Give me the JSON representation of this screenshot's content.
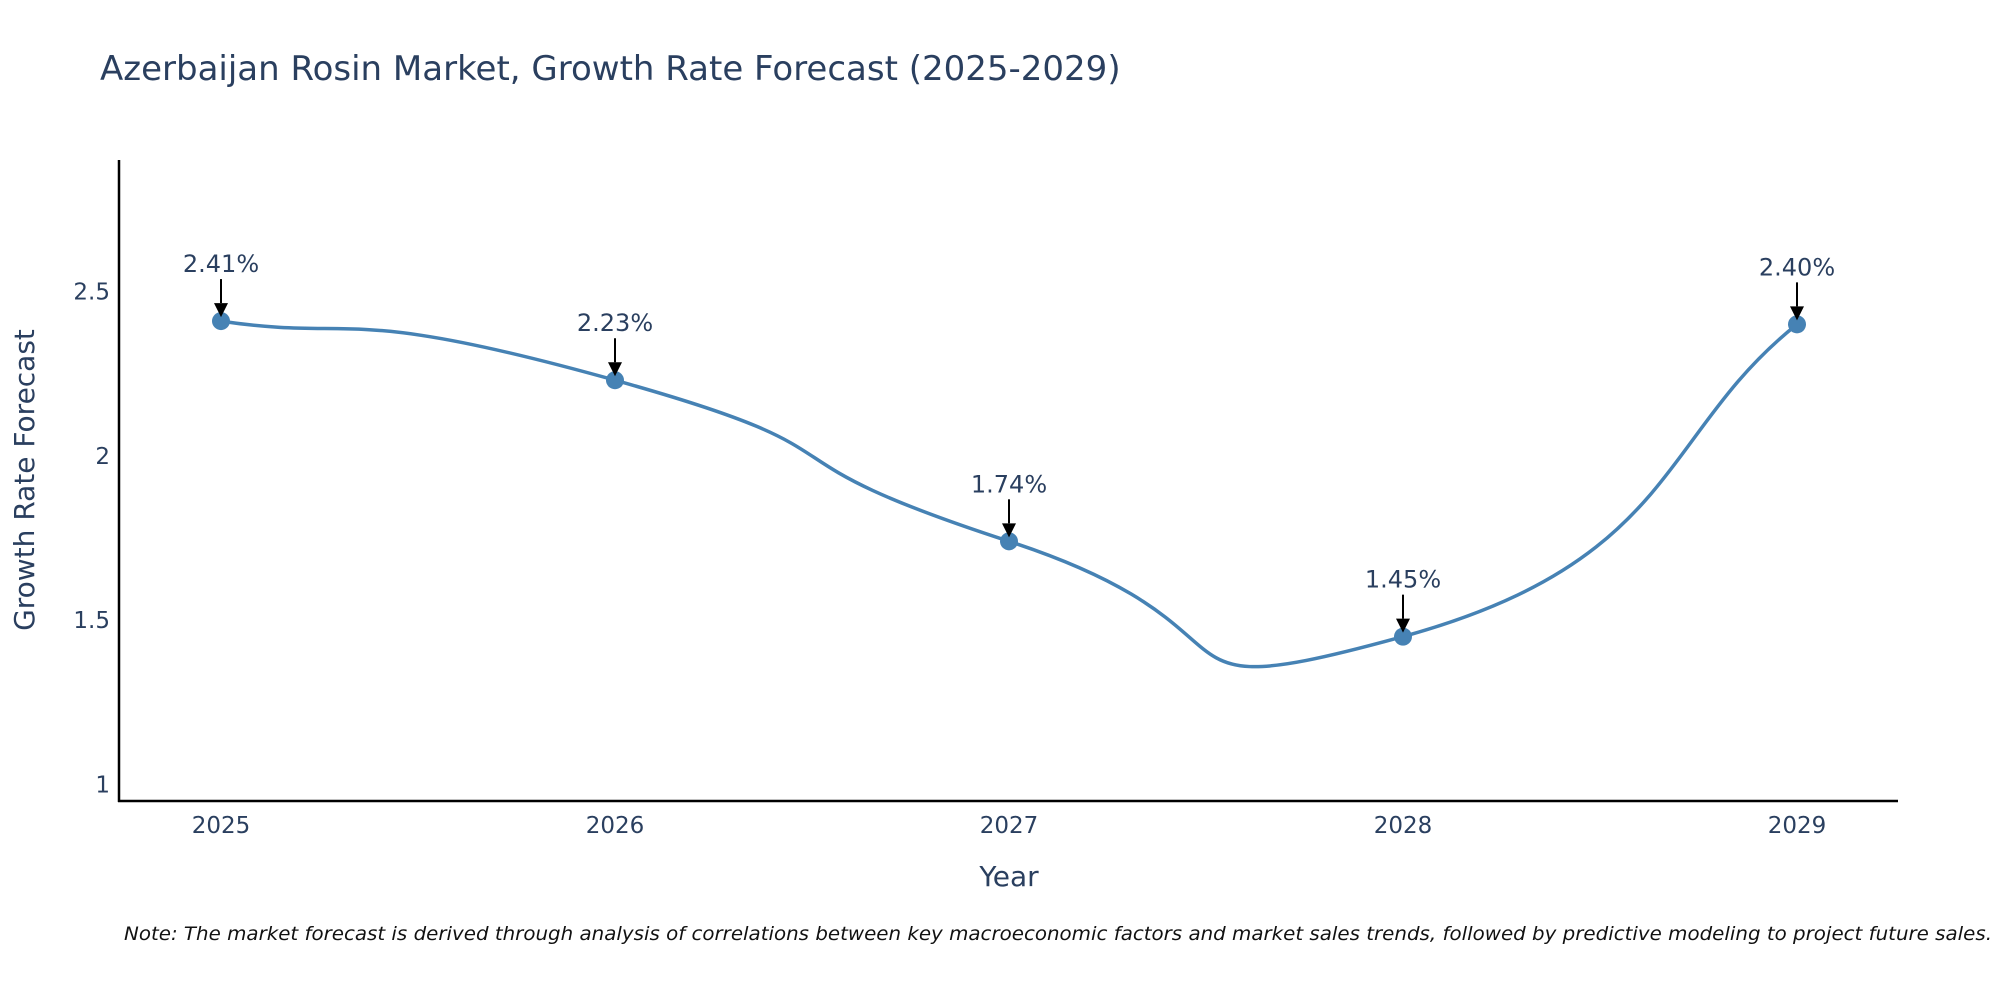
{
  "chart_data": {
    "type": "line",
    "title": "Azerbaijan Rosin Market, Growth Rate Forecast (2025-2029)",
    "xlabel": "Year",
    "ylabel": "Growth Rate Forecast",
    "categories": [
      "2025",
      "2026",
      "2027",
      "2028",
      "2029"
    ],
    "values": [
      2.41,
      2.23,
      1.74,
      1.45,
      2.4
    ],
    "data_labels": [
      "2.41%",
      "2.23%",
      "1.74%",
      "1.45%",
      "2.40%"
    ],
    "yticks": [
      1,
      1.5,
      2,
      2.5
    ],
    "ytick_labels": [
      "1",
      "1.5",
      "2",
      "2.5"
    ],
    "ylim": [
      0.95,
      2.9
    ],
    "line_shape": "spline",
    "grid": false,
    "line_color": "#4682b4",
    "marker_color": "#4682b4",
    "note": "Note: The market forecast is derived through analysis of correlations between key macroeconomic factors and market sales trends, followed by predictive modeling to project future sales."
  }
}
